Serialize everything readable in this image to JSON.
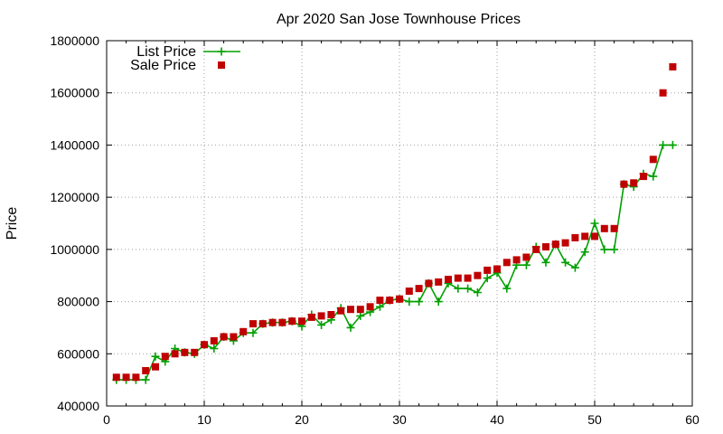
{
  "chart_data": {
    "type": "line",
    "title": "Apr 2020 San Jose Townhouse Prices",
    "xlabel": "",
    "ylabel": "Price",
    "xlim": [
      0,
      60
    ],
    "ylim": [
      400000,
      1800000
    ],
    "xticks": [
      0,
      10,
      20,
      30,
      40,
      50,
      60
    ],
    "yticks": [
      400000,
      600000,
      800000,
      1000000,
      1200000,
      1400000,
      1600000,
      1800000
    ],
    "grid": true,
    "legend_position": "top-left",
    "colors": {
      "list": "#00a000",
      "sale": "#c00000"
    },
    "series": [
      {
        "name": "List Price",
        "style": "line-plus",
        "x": [
          1,
          2,
          3,
          4,
          5,
          6,
          7,
          8,
          9,
          10,
          11,
          12,
          13,
          14,
          15,
          16,
          17,
          18,
          19,
          20,
          21,
          22,
          23,
          24,
          25,
          26,
          27,
          28,
          29,
          30,
          31,
          32,
          33,
          34,
          35,
          36,
          37,
          38,
          39,
          40,
          41,
          42,
          43,
          44,
          45,
          46,
          47,
          48,
          49,
          50,
          51,
          52,
          53,
          54,
          55,
          56,
          57,
          58
        ],
        "values": [
          500000,
          500000,
          500000,
          500000,
          590000,
          570000,
          620000,
          605000,
          600000,
          635000,
          620000,
          665000,
          650000,
          680000,
          680000,
          715000,
          720000,
          720000,
          725000,
          705000,
          750000,
          710000,
          730000,
          775000,
          700000,
          745000,
          760000,
          780000,
          805000,
          810000,
          800000,
          800000,
          870000,
          800000,
          870000,
          850000,
          850000,
          835000,
          890000,
          910000,
          850000,
          940000,
          940000,
          1010000,
          950000,
          1020000,
          950000,
          930000,
          990000,
          1100000,
          1000000,
          1000000,
          1250000,
          1240000,
          1290000,
          1280000,
          1400000,
          1400000
        ]
      },
      {
        "name": "Sale Price",
        "style": "square",
        "x": [
          1,
          2,
          3,
          4,
          5,
          6,
          7,
          8,
          9,
          10,
          11,
          12,
          13,
          14,
          15,
          16,
          17,
          18,
          19,
          20,
          21,
          22,
          23,
          24,
          25,
          26,
          27,
          28,
          29,
          30,
          31,
          32,
          33,
          34,
          35,
          36,
          37,
          38,
          39,
          40,
          41,
          42,
          43,
          44,
          45,
          46,
          47,
          48,
          49,
          50,
          51,
          52,
          53,
          54,
          55,
          56,
          57,
          58
        ],
        "values": [
          510000,
          510000,
          510000,
          535000,
          550000,
          590000,
          600000,
          605000,
          605000,
          635000,
          650000,
          665000,
          665000,
          685000,
          715000,
          715000,
          720000,
          720000,
          725000,
          725000,
          740000,
          745000,
          750000,
          765000,
          770000,
          770000,
          780000,
          805000,
          805000,
          810000,
          840000,
          850000,
          870000,
          875000,
          885000,
          890000,
          890000,
          900000,
          920000,
          925000,
          950000,
          960000,
          970000,
          1000000,
          1010000,
          1020000,
          1025000,
          1045000,
          1050000,
          1050000,
          1080000,
          1080000,
          1250000,
          1255000,
          1280000,
          1345000,
          1600000,
          1700000
        ]
      }
    ]
  }
}
